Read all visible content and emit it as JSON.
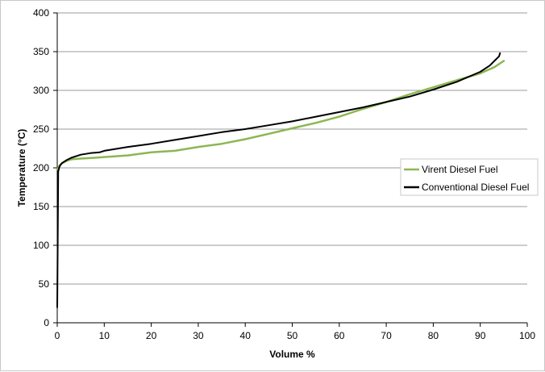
{
  "chart_data": {
    "type": "line",
    "title": "",
    "xlabel": "Volume %",
    "ylabel": "Temperature (°C)",
    "xlim": [
      0,
      100
    ],
    "ylim": [
      0,
      400
    ],
    "xticks": [
      "0",
      "10",
      "20",
      "30",
      "40",
      "50",
      "60",
      "70",
      "80",
      "90",
      "100"
    ],
    "yticks": [
      "0",
      "50",
      "100",
      "150",
      "200",
      "250",
      "300",
      "350",
      "400"
    ],
    "grid": "horizontal",
    "legend": "right",
    "series": [
      {
        "name": "Virent Diesel Fuel",
        "color": "#8db653",
        "x": [
          0,
          0.5,
          1,
          2,
          3,
          5,
          8,
          10,
          15,
          20,
          25,
          30,
          35,
          40,
          45,
          50,
          55,
          60,
          65,
          70,
          75,
          80,
          85,
          90,
          93,
          95
        ],
        "y": [
          198,
          203,
          206,
          209,
          211,
          212,
          213,
          214,
          216,
          220,
          222,
          227,
          231,
          237,
          244,
          251,
          258,
          266,
          276,
          285,
          295,
          304,
          313,
          322,
          330,
          338
        ]
      },
      {
        "name": "Conventional Diesel Fuel",
        "color": "#000000",
        "x": [
          0,
          0.2,
          0.4,
          0.6,
          1,
          2,
          3,
          5,
          7,
          9,
          10,
          15,
          20,
          25,
          30,
          35,
          40,
          45,
          50,
          55,
          60,
          65,
          70,
          75,
          80,
          85,
          90,
          92,
          93,
          94,
          94.2
        ],
        "y": [
          20,
          195,
          200,
          203,
          206,
          210,
          213,
          217,
          219,
          220,
          222,
          227,
          231,
          236,
          241,
          246,
          250,
          255,
          260,
          266,
          272,
          278,
          285,
          292,
          301,
          311,
          324,
          332,
          338,
          344,
          348
        ]
      }
    ]
  }
}
